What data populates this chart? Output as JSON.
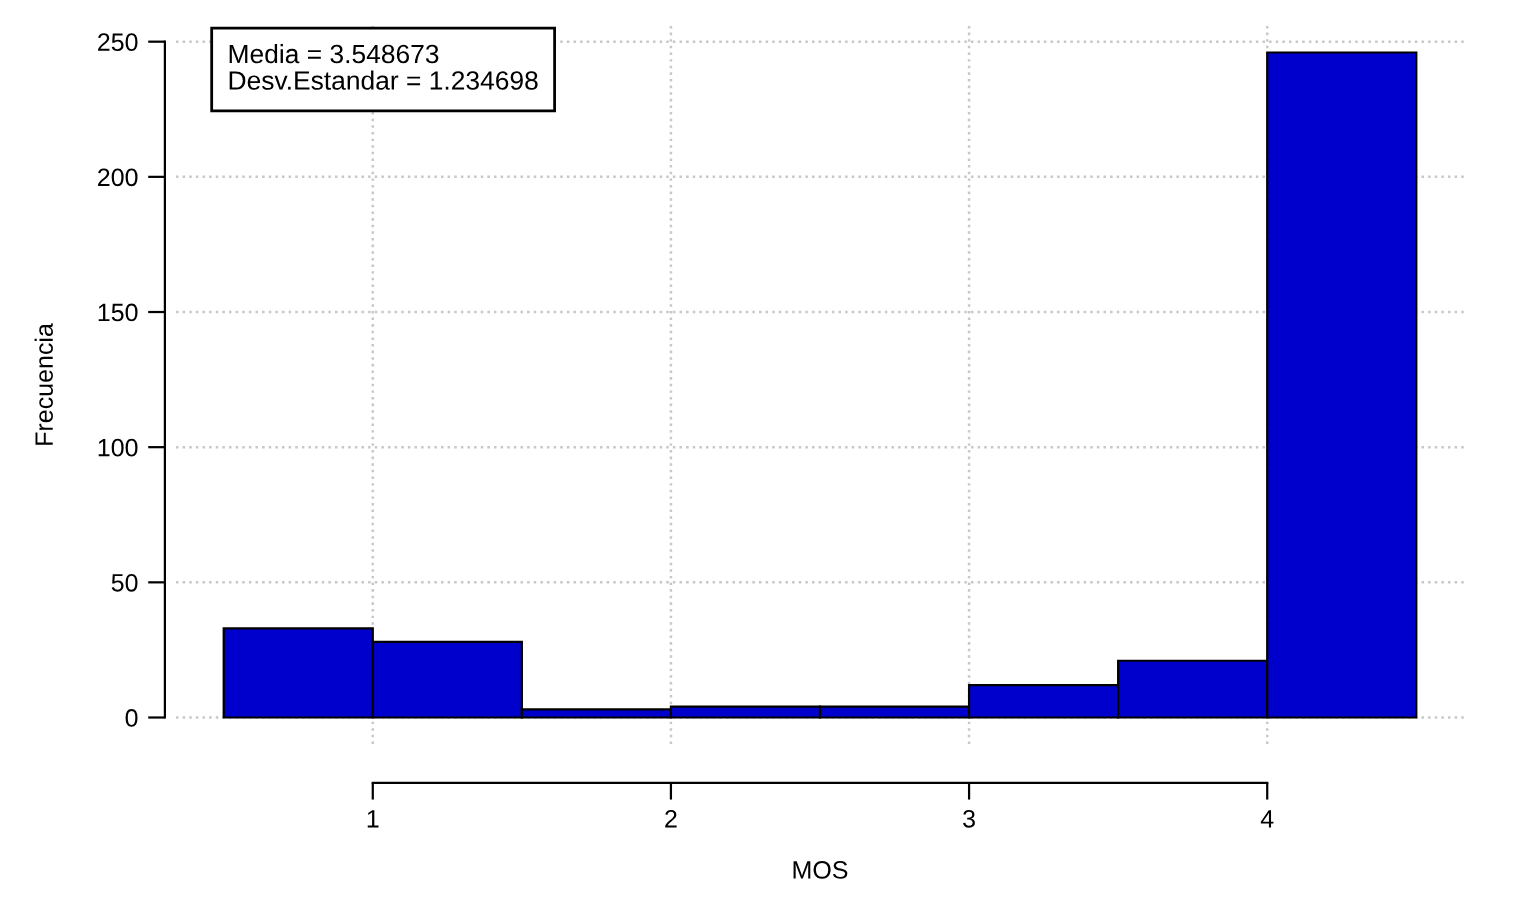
{
  "chart_data": {
    "type": "histogram",
    "xlabel": "MOS",
    "ylabel": "Frecuencia",
    "bins": [
      0.5,
      1,
      1.5,
      2,
      2.5,
      3,
      3.5,
      4,
      4.5
    ],
    "values": [
      33,
      28,
      3,
      4,
      4,
      12,
      21,
      246
    ],
    "color": "#0000cc",
    "xlim": [
      0.34,
      4.66
    ],
    "ylim": [
      -9.8,
      255.8
    ],
    "xticks": [
      1,
      2,
      3,
      4
    ],
    "yticks": [
      0,
      50,
      100,
      150,
      200,
      250
    ],
    "grid": true,
    "annotations": [
      "Media = 3.548673\nDesv.Estandar = 1.234698"
    ]
  }
}
